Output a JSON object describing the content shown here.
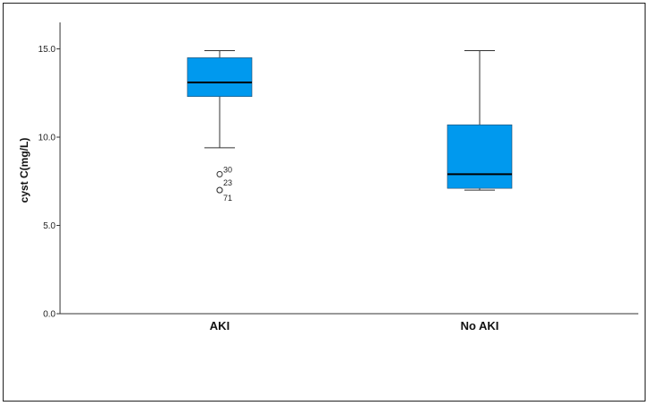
{
  "chart_data": {
    "type": "boxplot",
    "title": "",
    "xlabel": "",
    "ylabel": "cyst C(mg/L)",
    "ylim": [
      0,
      16.5
    ],
    "yticks": [
      "0.0",
      "5.0",
      "10.0",
      "15.0"
    ],
    "grid": false,
    "legend": "none",
    "box_color": "#0099ee",
    "categories": [
      "AKI",
      "No AKI"
    ],
    "boxes": [
      {
        "category": "AKI",
        "whisker_low": 9.4,
        "q1": 12.3,
        "median": 13.1,
        "q3": 14.5,
        "whisker_high": 14.9,
        "outliers": [
          {
            "value": 7.9,
            "label": "30"
          },
          {
            "value": 7.0,
            "label": "23"
          },
          {
            "value": 7.0,
            "label": "71"
          }
        ]
      },
      {
        "category": "No AKI",
        "whisker_low": 7.0,
        "q1": 7.1,
        "median": 7.9,
        "q3": 10.7,
        "whisker_high": 14.9,
        "outliers": []
      }
    ]
  }
}
